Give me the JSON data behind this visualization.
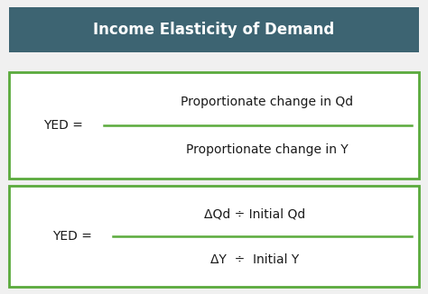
{
  "title": "Income Elasticity of Demand",
  "title_bg_color": "#3d6472",
  "title_text_color": "#ffffff",
  "box_border_color": "#5aaa3c",
  "box_bg_color": "#ffffff",
  "text_color": "#1a1a1a",
  "formula1_left": "YED =",
  "formula1_numerator": "Proportionate change in Qd",
  "formula1_denominator": "Proportionate change in Y",
  "formula2_left": "YED =",
  "formula2_numerator": "ΔQd ÷ Initial Qd",
  "formula2_denominator": "ΔY  ÷  Initial Y",
  "page_bg_color": "#f0f0f0",
  "title_fontsize": 12,
  "formula_fontsize": 10,
  "label_fontsize": 10
}
